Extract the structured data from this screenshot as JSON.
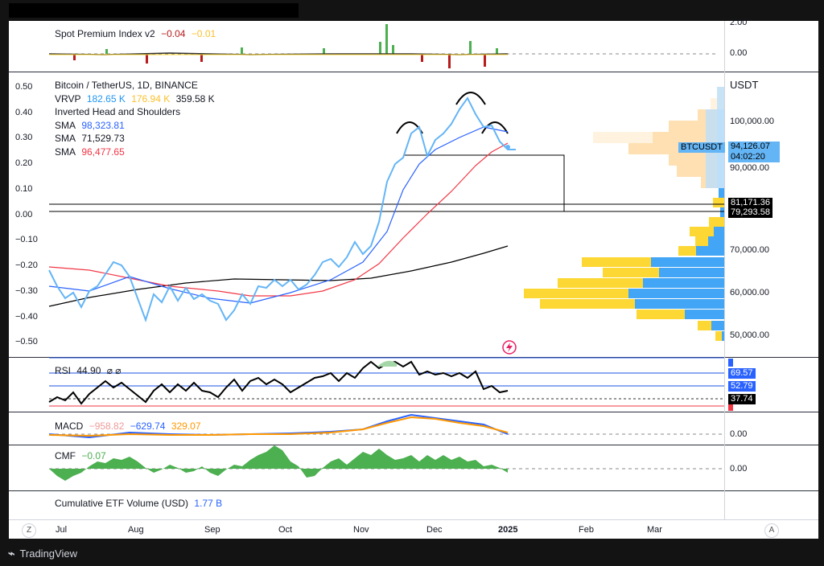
{
  "spot_premium": {
    "title": "Spot Premium Index v2",
    "v1": "−0.04",
    "v2": "−0.01",
    "axis": [
      "2.00",
      "0.00"
    ]
  },
  "price": {
    "symbol": "Bitcoin / TetherUS, 1D, BINANCE",
    "vrvp_label": "VRVP",
    "vrvp1": "182.65 K",
    "vrvp2": "176.94 K",
    "vrvp3": "359.58 K",
    "pattern": "Inverted Head and Shoulders",
    "sma_label": "SMA",
    "sma1": "98,323.81",
    "sma2": "71,529.73",
    "sma3": "96,477.65",
    "currency": "USDT",
    "left_axis": [
      "0.50",
      "0.40",
      "0.30",
      "0.20",
      "0.10",
      "0.00",
      "−0.10",
      "−0.20",
      "−0.30",
      "−0.40",
      "−0.50"
    ],
    "right_axis": [
      "100,000.00",
      "70,000.00",
      "60,000.00",
      "50,000.00"
    ],
    "ticker_tag": "BTCUSDT",
    "last_price": "94,126.07",
    "countdown": "04:02:20",
    "partial_price": "90,000.00",
    "level1": "81,171.36",
    "level2": "79,293.58"
  },
  "rsi": {
    "label": "RSI",
    "value": "44.90",
    "axis": [
      "69.57",
      "52.79",
      "37.74"
    ]
  },
  "macd": {
    "label": "MACD",
    "v1": "−958.82",
    "v2": "−629.74",
    "v3": "329.07",
    "axis": "0.00"
  },
  "cmf": {
    "label": "CMF",
    "value": "−0.07",
    "axis": "0.00"
  },
  "etf": {
    "label": "Cumulative ETF Volume (USD)",
    "value": "1.77 B"
  },
  "xaxis": [
    "Jul",
    "Aug",
    "Sep",
    "Oct",
    "Nov",
    "Dec",
    "2025",
    "Feb",
    "Mar"
  ],
  "corner_left": "Z",
  "corner_right": "A",
  "brand": "TradingView",
  "colors": {
    "blue_line": "#64b5f6",
    "sma_blue": "#2962ff",
    "sma_red": "#f23645",
    "rsi_band": "#1e53e5",
    "green": "#4caf50",
    "orange": "#ff9800"
  }
}
